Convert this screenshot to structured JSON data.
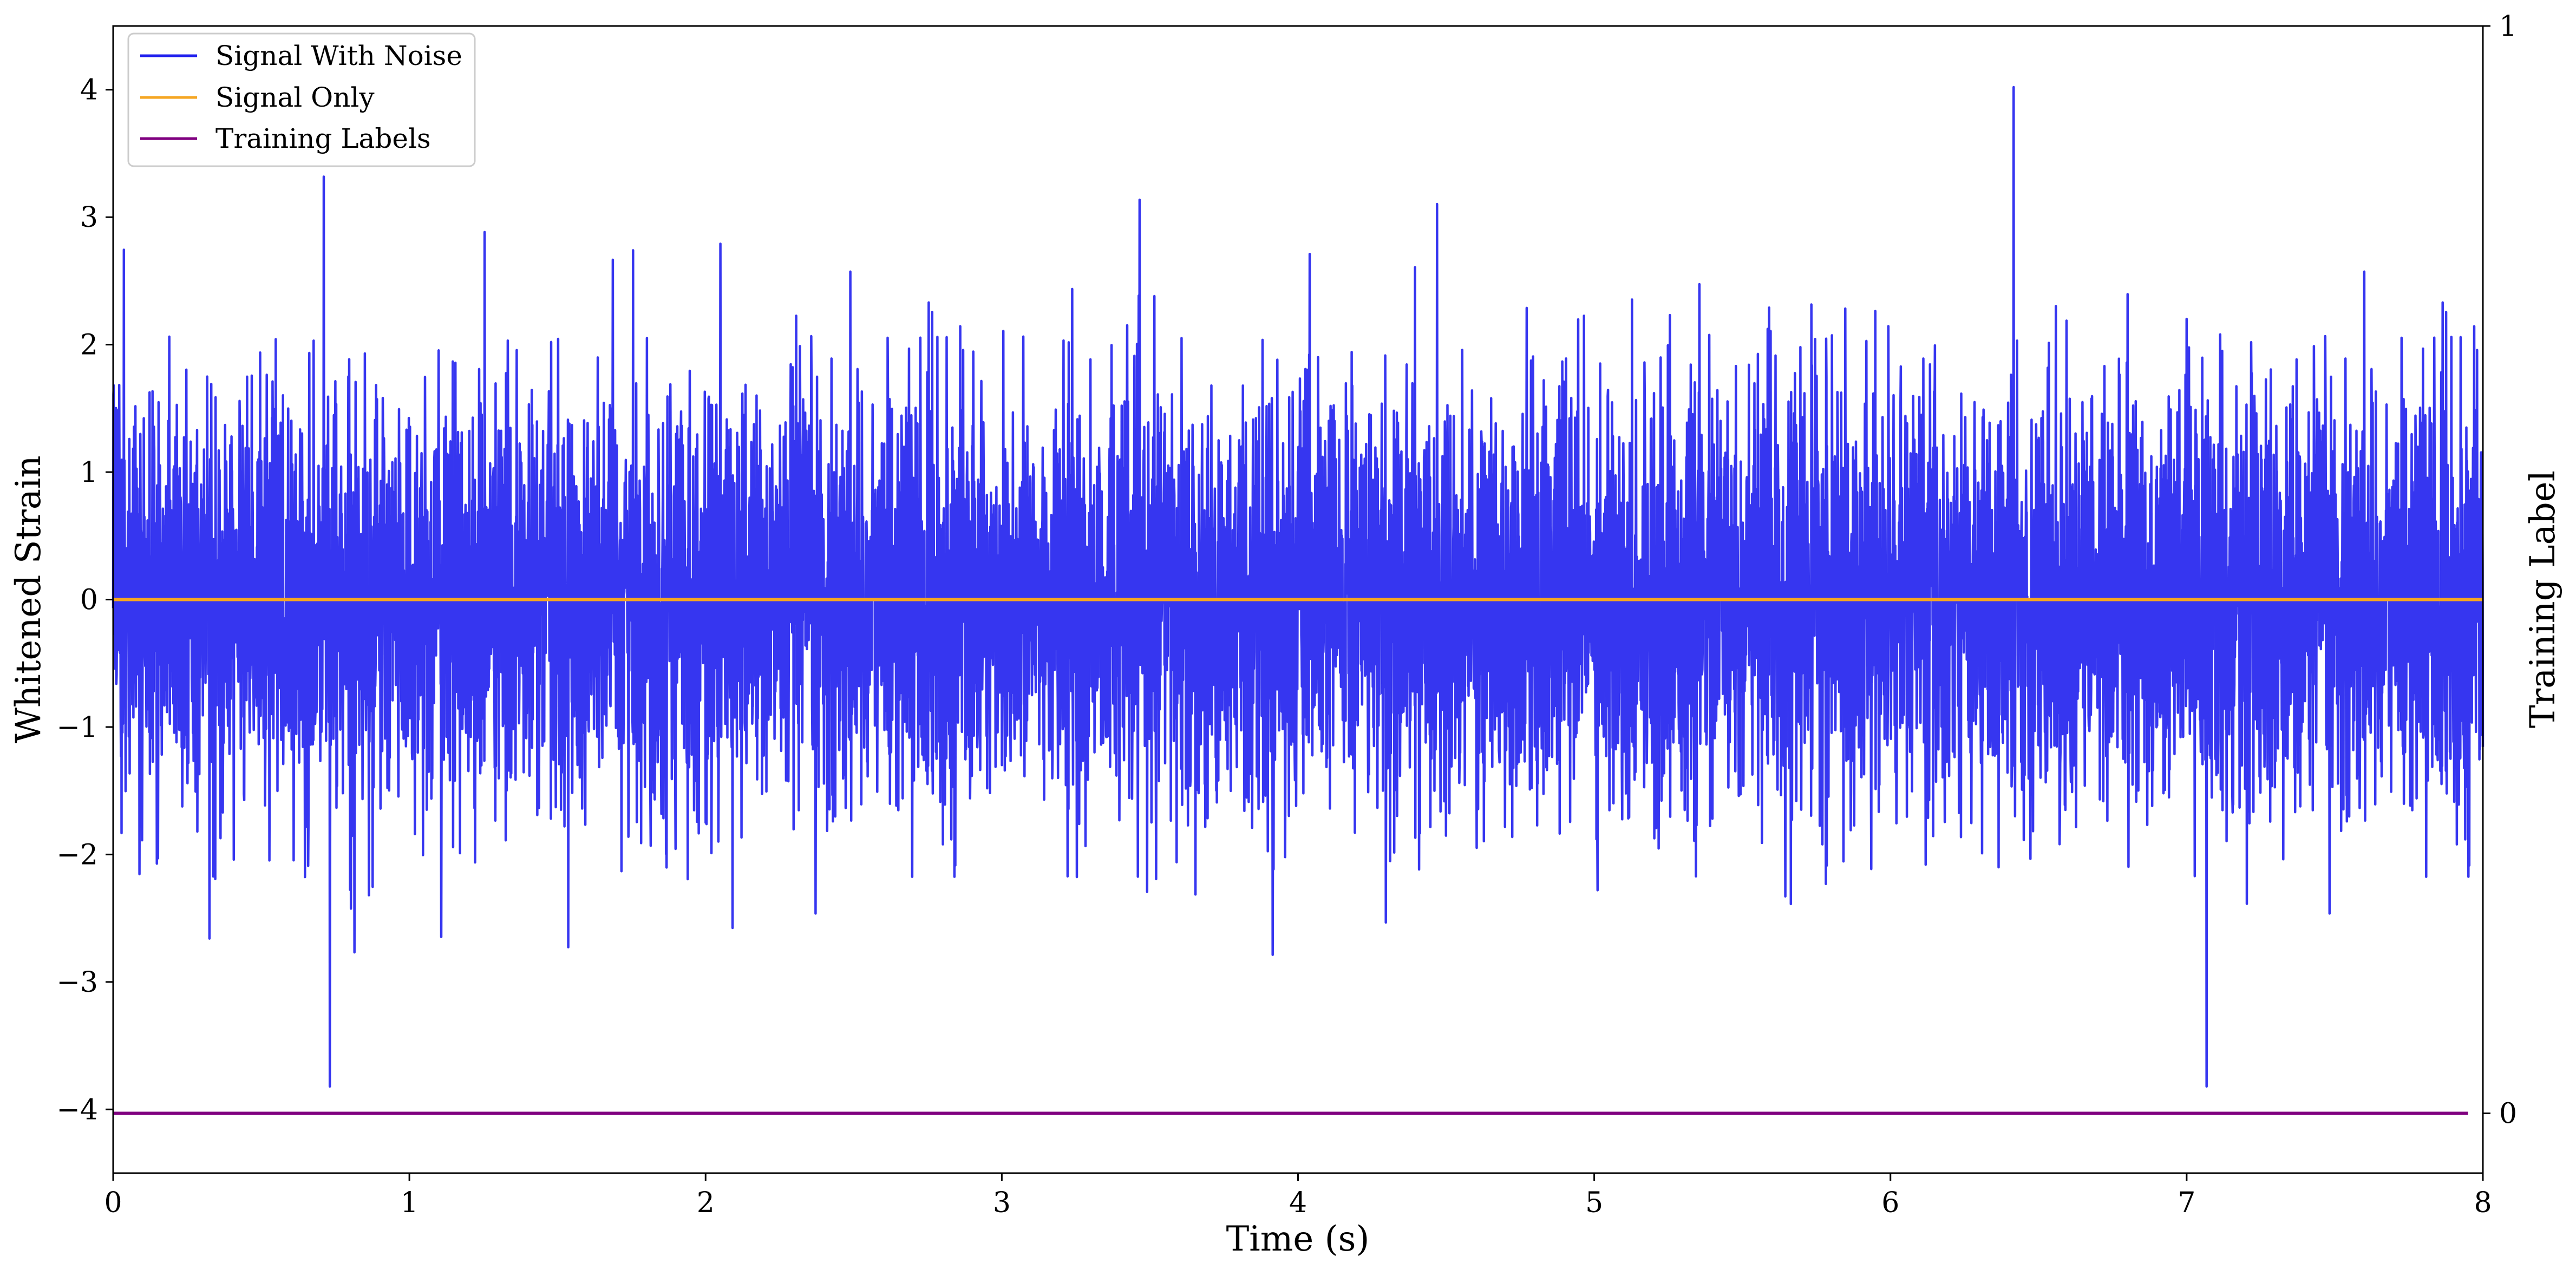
{
  "chart_data": {
    "type": "line",
    "title": "",
    "xlabel": "Time (s)",
    "ylabel": "Whitened Strain",
    "y2label": "Training Label",
    "xlim": [
      0,
      8
    ],
    "ylim": [
      -4.5,
      4.5
    ],
    "y2lim": [
      -0.055,
      1.0
    ],
    "xticks": [
      0,
      1,
      2,
      3,
      4,
      5,
      6,
      7,
      8
    ],
    "xtick_labels": [
      "0",
      "1",
      "2",
      "3",
      "4",
      "5",
      "6",
      "7",
      "8"
    ],
    "yticks": [
      -4,
      -3,
      -2,
      -1,
      0,
      1,
      2,
      3,
      4
    ],
    "ytick_labels": [
      "−4",
      "−3",
      "−2",
      "−1",
      "0",
      "1",
      "2",
      "3",
      "4"
    ],
    "y2ticks": [
      0,
      1
    ],
    "y2tick_labels": [
      "0",
      "1"
    ],
    "grid": false,
    "legend_position": "top-left",
    "series": [
      {
        "name": "Signal With Noise",
        "axis": "left",
        "color": "#2020ee",
        "kind": "noise",
        "x_range": [
          0,
          8
        ],
        "samples": 8192,
        "std": 0.82,
        "peak_max": 4.02,
        "peak_min": -3.82
      },
      {
        "name": "Signal Only",
        "axis": "left",
        "color": "#f5a623",
        "kind": "constant",
        "x": [
          0,
          8
        ],
        "y": [
          0,
          0
        ]
      },
      {
        "name": "Training Labels",
        "axis": "right",
        "color": "#800080",
        "kind": "constant",
        "x": [
          0,
          7.95
        ],
        "y": [
          0,
          0
        ]
      }
    ]
  }
}
